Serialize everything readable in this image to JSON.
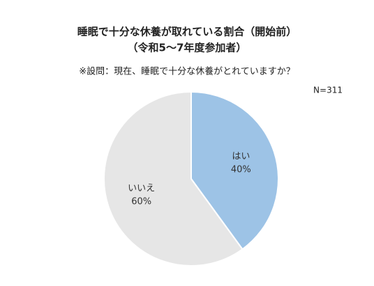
{
  "chart_data": {
    "type": "pie",
    "title": "睡眠で十分な休養が取れている割合（開始前）",
    "subtitle": "（令和5～7年度参加者）",
    "question": "※設問：現在、睡眠で十分な休養がとれていますか？",
    "annotation": "N=311",
    "categories": [
      "はい",
      "いいえ"
    ],
    "values": [
      40,
      60
    ],
    "value_labels": [
      "40%",
      "60%"
    ],
    "colors": [
      "#9dc3e6",
      "#e6e6e6"
    ]
  }
}
